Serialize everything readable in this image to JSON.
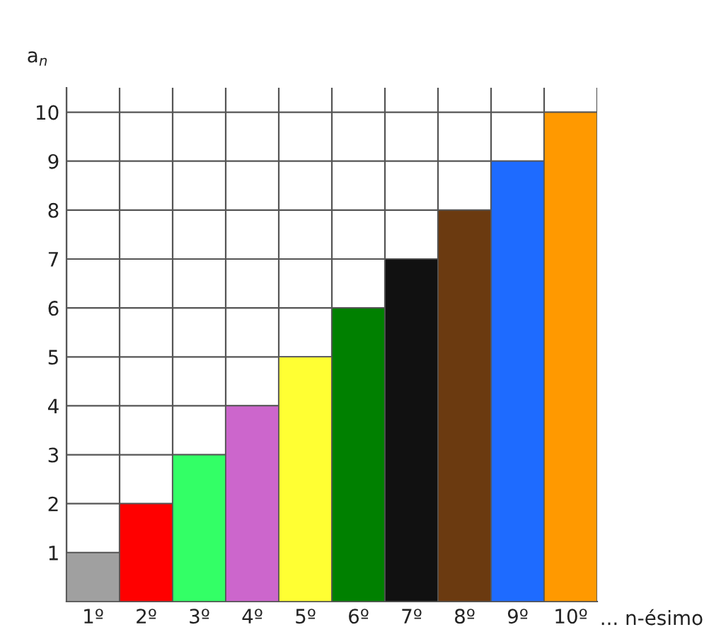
{
  "chart_data": {
    "type": "bar",
    "xlabel": "... n-ésimo",
    "ylabel": "a$_{n}$",
    "categories": [
      "1º",
      "2º",
      "3º",
      "4º",
      "5º",
      "6º",
      "7º",
      "8º",
      "9º",
      "10º"
    ],
    "values": [
      1,
      2,
      3,
      4,
      5,
      6,
      7,
      8,
      9,
      10
    ],
    "colors": [
      "#a0a0a0",
      "#ff0000",
      "#33ff66",
      "#cc66cc",
      "#ffff33",
      "#008000",
      "#111111",
      "#6b3a10",
      "#1e6bff",
      "#ff9900"
    ],
    "ylim": [
      0,
      10.5
    ],
    "yticks": [
      1,
      2,
      3,
      4,
      5,
      6,
      7,
      8,
      9,
      10
    ],
    "grid": true
  }
}
